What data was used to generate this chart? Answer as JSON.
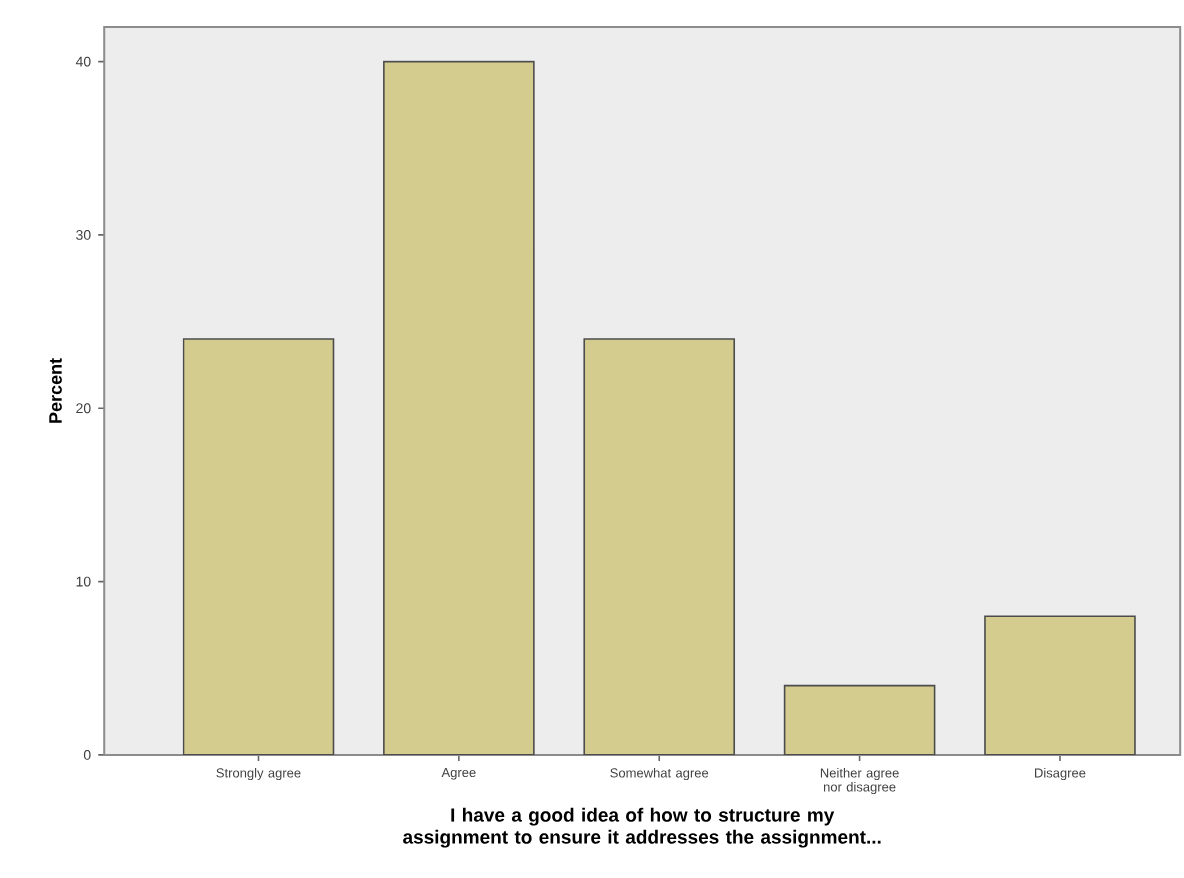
{
  "chart_data": {
    "type": "bar",
    "xlabel": "I have a good idea of how to structure my assignment to ensure it addresses the assignment...",
    "ylabel": "Percent",
    "categories": [
      "Strongly agree",
      "Agree",
      "Somewhat agree",
      "Neither agree nor disagree",
      "Disagree"
    ],
    "values": [
      24,
      40,
      24,
      4,
      8
    ],
    "color": "#d4cc8e",
    "ylim": [
      0,
      42
    ],
    "yticks": [
      0,
      10,
      20,
      30,
      40
    ],
    "grid": false
  }
}
